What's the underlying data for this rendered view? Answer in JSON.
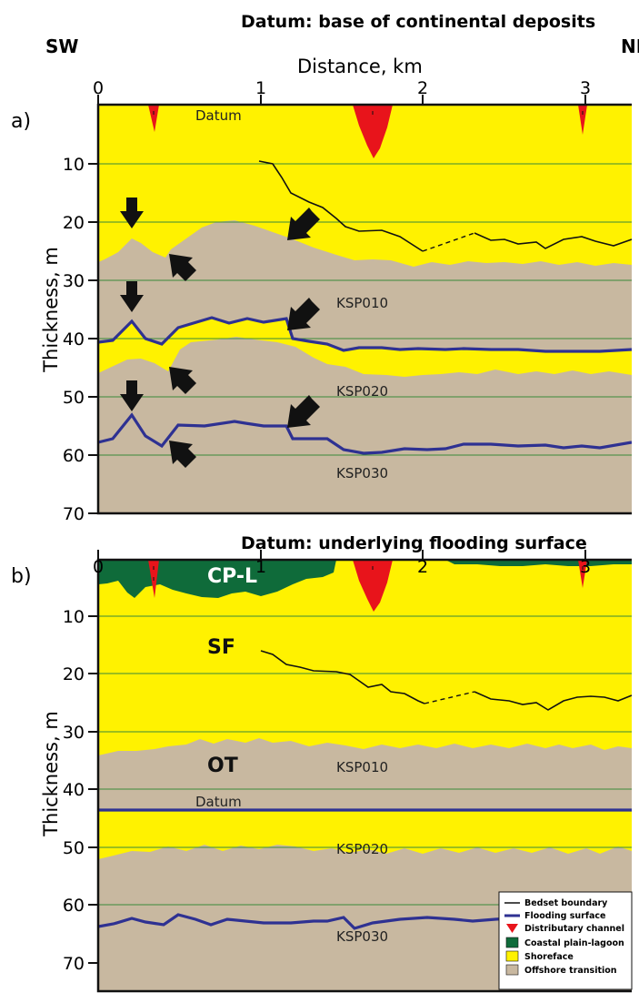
{
  "panel_a": {
    "title": "Datum: base of continental deposits",
    "dir_left": "SW",
    "dir_right": "NE",
    "x_label": "Distance, km",
    "x_ticks": [
      "0",
      "1",
      "2",
      "3"
    ],
    "y_label": "Thickness, m",
    "y_ticks": [
      "10",
      "20",
      "30",
      "40",
      "50",
      "60",
      "70"
    ],
    "panel_label": "a)",
    "datum_label": "Datum",
    "units": [
      "KSP010",
      "KSP020",
      "KSP030"
    ]
  },
  "panel_b": {
    "title": "Datum: underlying flooding surface",
    "x_ticks": [
      "0",
      "1",
      "2",
      "3"
    ],
    "y_label": "Thickness, m",
    "y_ticks": [
      "10",
      "20",
      "30",
      "40",
      "50",
      "60",
      "70"
    ],
    "panel_label": "b)",
    "datum_label": "Datum",
    "units": [
      "KSP010",
      "KSP020",
      "KSP030"
    ],
    "zones": [
      "CP-L",
      "SF",
      "OT"
    ]
  },
  "legend": {
    "items": [
      {
        "label": "Bedset boundary",
        "swatch": "line",
        "color": "#111111"
      },
      {
        "label": "Flooding surface",
        "swatch": "line",
        "color": "#2e3192"
      },
      {
        "label": "Distributary channel",
        "swatch": "triangle",
        "color": "#e8141b"
      },
      {
        "label": "Coastal plain-lagoon",
        "swatch": "box",
        "color": "#0f6b3a"
      },
      {
        "label": "Shoreface",
        "swatch": "box",
        "color": "#fff200"
      },
      {
        "label": "Offshore transition",
        "swatch": "box",
        "color": "#c8b8a0"
      }
    ]
  },
  "colors": {
    "shoreface": "#fff200",
    "offshore": "#c8b8a0",
    "coastal": "#0f6b3a",
    "channel": "#e8141b",
    "flooding": "#2e3192",
    "bedset": "#111111",
    "grid": "#3a8a3a"
  }
}
